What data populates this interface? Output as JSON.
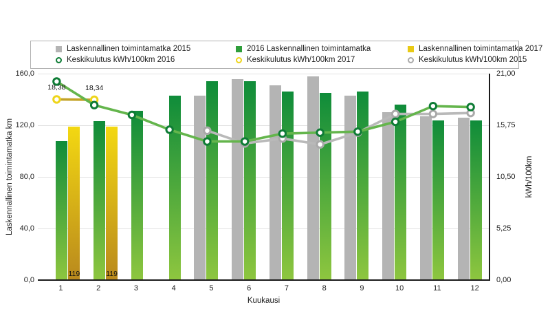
{
  "chart_data": {
    "type": "bar+line combo",
    "x_categories": [
      "1",
      "2",
      "3",
      "4",
      "5",
      "6",
      "7",
      "8",
      "9",
      "10",
      "11",
      "12"
    ],
    "xlabel": "Kuukausi",
    "ylabel_left": "Laskennallinen toimintamatka km",
    "ylabel_right": "kWh/100km",
    "ylim_left": [
      0,
      160
    ],
    "ylim_right": [
      0,
      21
    ],
    "yticks_left": [
      "0,0",
      "40,0",
      "80,0",
      "120,0",
      "160,0"
    ],
    "yticks_right": [
      "0,00",
      "5,25",
      "10,50",
      "15,75",
      "21,00"
    ],
    "grid": true,
    "legend_position": "top-boxed",
    "bar_series": [
      {
        "key": "2015",
        "name": "Laskennallinen toimintamatka 2015",
        "axis": "left",
        "color_top": "#b4b4b4",
        "color_bottom": "#b4b4b4",
        "values": [
          null,
          null,
          null,
          null,
          143,
          156,
          151,
          158,
          143,
          130,
          127,
          126
        ]
      },
      {
        "key": "2016",
        "name": "2016 Laskennallinen toimintamatka",
        "axis": "left",
        "color_top": "#0f8c3a",
        "color_bottom": "#8ec63f",
        "values": [
          108,
          123,
          131,
          143,
          154,
          154,
          146,
          145,
          146,
          136,
          124,
          124
        ]
      },
      {
        "key": "2017",
        "name": "Laskennallinen toimintamatka 2017",
        "axis": "left",
        "color_top": "#f3d812",
        "color_bottom": "#b9891d",
        "values": [
          119,
          119,
          null,
          null,
          null,
          null,
          null,
          null,
          null,
          null,
          null,
          null
        ]
      }
    ],
    "line_series": [
      {
        "key": "2015",
        "name": "Keskikulutus kWh/100km 2015",
        "axis": "right",
        "line_color": "#b9b9b9",
        "ring_color": "#a9a9a9",
        "values": [
          null,
          null,
          null,
          null,
          15.2,
          13.9,
          14.4,
          13.8,
          15.0,
          16.9,
          16.9,
          17.0
        ]
      },
      {
        "key": "2017",
        "name": "Keskikulutus kWh/100km 2017",
        "axis": "right",
        "line_color": "#c3a327",
        "ring_color": "#eed51a",
        "values": [
          18.38,
          18.34,
          null,
          null,
          null,
          null,
          null,
          null,
          null,
          null,
          null,
          null
        ]
      },
      {
        "key": "2016",
        "name": "Keskikulutus kWh/100km 2016",
        "axis": "right",
        "line_color": "#64b54c",
        "ring_color": "#0e7c35",
        "values": [
          20.2,
          17.8,
          16.8,
          15.3,
          14.1,
          14.1,
          14.9,
          15.0,
          15.1,
          16.1,
          17.7,
          17.6
        ]
      }
    ],
    "annotations": [
      {
        "text": "18,38",
        "month": 1,
        "anchor": "line-2017"
      },
      {
        "text": "18,34",
        "month": 2,
        "anchor": "line-2017"
      },
      {
        "text": "119",
        "month": 1,
        "anchor": "bar-2017"
      },
      {
        "text": "119",
        "month": 2,
        "anchor": "bar-2017"
      }
    ]
  },
  "legend": {
    "items": [
      {
        "shape": "square",
        "color": "#b4b4b4",
        "label": "Laskennallinen toimintamatka 2015"
      },
      {
        "shape": "square",
        "color": "#2f9e3b",
        "label": "2016 Laskennallinen toimintamatka"
      },
      {
        "shape": "square",
        "color": "#e9ca15",
        "label": "Laskennallinen toimintamatka 2017"
      },
      {
        "shape": "circle",
        "color": "#0e7c35",
        "label": "Keskikulutus kWh/100km 2016"
      },
      {
        "shape": "circle",
        "color": "#eed51a",
        "label": "Keskikulutus kWh/100km 2017"
      },
      {
        "shape": "circle",
        "color": "#a9a9a9",
        "label": "Keskikulutus kWh/100km 2015"
      }
    ]
  },
  "colors": {
    "gridline": "#e2e2e2",
    "axis_line": "#1a1a1a",
    "text": "#1d1d1d",
    "background": "#ffffff"
  }
}
